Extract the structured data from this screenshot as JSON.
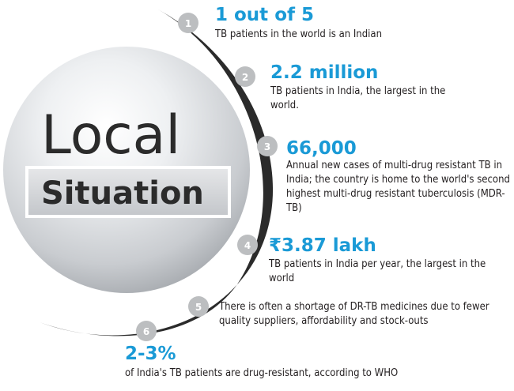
{
  "title": {
    "line1": "Local",
    "line2": "Situation"
  },
  "colors": {
    "accent": "#1a9ad6",
    "badge": "#bcbec0",
    "arc": "#2b2b2b",
    "text": "#231f20"
  },
  "points": [
    {
      "number": "1",
      "headline": "1 out of 5",
      "text": "TB patients in the world is an Indian"
    },
    {
      "number": "2",
      "headline": "2.2 million",
      "text": "TB patients in India, the largest in the world."
    },
    {
      "number": "3",
      "headline": "66,000",
      "text": "Annual new cases of multi-drug resistant TB in India; the country is home to the world's second highest multi-drug resistant tuberculosis (MDR-TB)"
    },
    {
      "number": "4",
      "headline": "₹3.87 lakh",
      "text": "TB patients in India per year, the largest in the world"
    },
    {
      "number": "5",
      "headline": "",
      "text": "There is often a shortage of DR-TB medicines due to fewer quality suppliers, affordability and stock-outs"
    },
    {
      "number": "6",
      "headline": "2-3%",
      "text": "of India's TB patients are drug-resistant, according to WHO"
    }
  ]
}
